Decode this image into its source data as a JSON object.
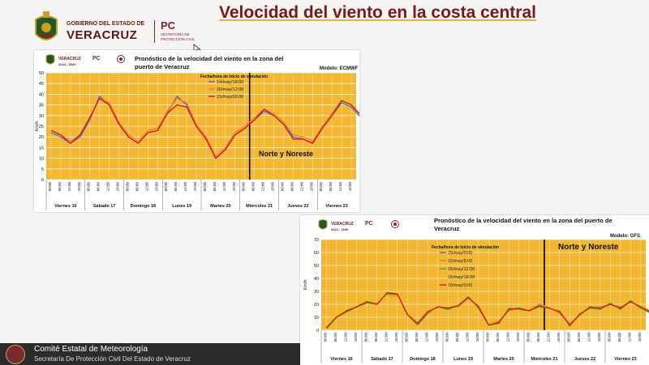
{
  "slide": {
    "title": "Velocidad del viento en la costa central",
    "gov_line1": "GOBIERNO DEL ESTADO DE",
    "gov_line2": "VERACRUZ",
    "pc_label": "PC",
    "pc_sub1": "SECRETARÍA DE",
    "pc_sub2": "PROTECCIÓN CIVIL",
    "footer_title": "Comité Estatal de Meteorología",
    "footer_subtitle": "Secretaría De Protección Civil Del Estado de Veracruz",
    "mini_gov": "VERACRUZ",
    "mini_years": "2024 - 2030"
  },
  "chart_data": [
    {
      "type": "line",
      "title": "Pronóstico de la velocidad  del viento en la zona del puerto de Veracruz",
      "model": "Modelo: ECMWF",
      "ylabel": "Km/h",
      "ylim": [
        0,
        50
      ],
      "yticks": [
        0,
        5,
        10,
        15,
        20,
        25,
        30,
        35,
        40,
        45,
        50
      ],
      "legend_title": "Fecha/hora de inicio de simulación",
      "legend_position": "top-center",
      "annotation": "Norte y Noreste",
      "grid": true,
      "hours": [
        "00:00",
        "06:00",
        "12:00",
        "18:00"
      ],
      "days": [
        "Viernes 16",
        "Sábado 17",
        "Domingo 18",
        "Lunes 19",
        "Martes 20",
        "Miércoles 21",
        "Jueves 22",
        "Viernes 23"
      ],
      "split_after_step": 21,
      "series": [
        {
          "name": "14/may/18:00",
          "color": "#4472c4",
          "values": [
            22,
            20,
            17,
            20,
            28,
            39,
            35,
            26,
            20,
            17,
            22,
            23,
            31,
            39,
            35,
            25,
            19,
            10,
            14,
            21,
            24,
            28,
            32,
            30,
            26,
            20,
            19,
            17,
            24,
            30,
            36,
            34,
            29,
            24,
            21,
            22,
            28,
            33,
            34,
            30,
            28,
            22,
            20,
            23,
            28,
            34,
            36,
            32,
            28,
            20,
            16,
            18,
            26,
            31,
            34,
            33,
            30,
            29,
            30,
            34,
            36,
            37,
            35,
            34
          ]
        },
        {
          "name": "15/may/12:00",
          "color": "#ed7d31",
          "values": [
            23,
            21,
            18,
            21,
            29,
            38,
            36,
            27,
            21,
            18,
            23,
            24,
            32,
            38,
            36,
            26,
            20,
            11,
            15,
            22,
            25,
            29,
            33,
            31,
            27,
            21,
            20,
            18,
            25,
            31,
            37,
            35,
            30,
            25,
            22,
            23,
            29,
            34,
            35,
            31,
            29,
            23,
            20,
            24,
            30,
            36,
            38,
            37,
            36,
            32,
            30,
            32,
            36,
            39,
            40,
            38,
            35,
            32,
            31,
            33,
            35,
            36,
            35,
            33
          ]
        },
        {
          "name": "15/may/00:00",
          "color": "#e01010",
          "values": [
            23,
            21,
            17,
            21,
            29,
            38,
            35,
            26,
            20,
            17,
            22,
            23,
            31,
            35,
            34,
            25,
            19,
            10,
            14,
            21,
            24,
            28,
            33,
            30,
            26,
            19,
            19,
            17,
            24,
            30,
            37,
            35,
            30,
            24,
            21,
            22,
            29,
            34,
            35,
            31,
            28,
            19,
            16,
            22,
            28,
            32,
            31,
            30,
            27,
            31,
            35,
            38,
            42,
            44,
            43,
            40,
            36,
            33,
            32,
            34,
            35,
            34,
            31,
            24
          ]
        }
      ]
    },
    {
      "type": "line",
      "title": "Pronóstico de la velocidad  del viento en la zona del puerto de Veracruz",
      "model": "Modelo: GFS",
      "ylabel": "Km/h",
      "ylim": [
        0,
        70
      ],
      "yticks": [
        0,
        10,
        20,
        30,
        40,
        50,
        60,
        70
      ],
      "legend_title": "Fecha/hora de inicio de simulación",
      "legend_position": "top-left",
      "annotation": "Norte y Noreste",
      "grid": true,
      "hours": [
        "00:00",
        "06:00",
        "12:00",
        "18:00"
      ],
      "days": [
        "Viernes 16",
        "Sábado 17",
        "Domingo 18",
        "Lunes 19",
        "Martes 20",
        "Miércoles 21",
        "Jueves 22",
        "Viernes 23"
      ],
      "split_after_step": 22,
      "series": [
        {
          "name": "15/may/0:00",
          "color": "#4472c4",
          "values": [
            2,
            10,
            15,
            18,
            22,
            20,
            28,
            27,
            12,
            5,
            14,
            18,
            17,
            19,
            25,
            18,
            4,
            6,
            16,
            17,
            15,
            19,
            17,
            14,
            4,
            12,
            18,
            17,
            20,
            17,
            22,
            18,
            14,
            8,
            17,
            20,
            19,
            17,
            20,
            18,
            14,
            6,
            10,
            15,
            5,
            7,
            20,
            28,
            22,
            12,
            15,
            28,
            38,
            40,
            35,
            32,
            34,
            30,
            36,
            38,
            40,
            38,
            35,
            30
          ]
        },
        {
          "name": "15/may/6:00",
          "color": "#ed7d31",
          "values": [
            2,
            11,
            15,
            19,
            22,
            21,
            27,
            27,
            13,
            6,
            15,
            17,
            18,
            18,
            24,
            19,
            5,
            7,
            15,
            17,
            16,
            20,
            18,
            13,
            5,
            12,
            18,
            18,
            20,
            18,
            22,
            18,
            14,
            7,
            16,
            20,
            19,
            18,
            21,
            17,
            13,
            5,
            9,
            14,
            6,
            6,
            22,
            35,
            45,
            48,
            50,
            46,
            44,
            47,
            48,
            45,
            42,
            35,
            32,
            33,
            30,
            28,
            26,
            22
          ]
        },
        {
          "name": "15/may/12:00",
          "color": "#30b030",
          "values": [
            1,
            10,
            14,
            18,
            21,
            20,
            28,
            28,
            12,
            4,
            13,
            18,
            16,
            19,
            26,
            17,
            4,
            5,
            17,
            16,
            15,
            18,
            17,
            15,
            3,
            13,
            17,
            16,
            21,
            16,
            23,
            17,
            13,
            9,
            18,
            20,
            18,
            16,
            20,
            19,
            15,
            5,
            8,
            16,
            4,
            5,
            18,
            32,
            36,
            40,
            42,
            45,
            50,
            44,
            40,
            36,
            32,
            28,
            24,
            22,
            20,
            18,
            20,
            24
          ]
        },
        {
          "name": "15/may/18:00",
          "color": "#f2c200",
          "values": [
            2,
            11,
            16,
            19,
            23,
            21,
            27,
            26,
            13,
            5,
            14,
            17,
            18,
            19,
            24,
            18,
            5,
            6,
            16,
            17,
            16,
            19,
            18,
            14,
            4,
            12,
            19,
            17,
            20,
            17,
            22,
            19,
            15,
            8,
            16,
            21,
            19,
            17,
            21,
            18,
            13,
            6,
            9,
            15,
            5,
            6,
            25,
            38,
            42,
            40,
            39,
            44,
            42,
            40,
            36,
            32,
            30,
            28,
            27,
            25,
            24,
            22,
            20,
            18
          ]
        },
        {
          "name": "16/may/0:00",
          "color": "#e01010",
          "values": [
            2,
            10,
            15,
            18,
            22,
            20,
            29,
            28,
            12,
            5,
            14,
            18,
            17,
            19,
            25,
            18,
            4,
            6,
            16,
            17,
            15,
            19,
            17,
            14,
            4,
            12,
            18,
            17,
            20,
            17,
            22,
            18,
            14,
            8,
            17,
            20,
            19,
            17,
            20,
            18,
            14,
            6,
            10,
            15,
            5,
            7,
            20,
            28,
            24,
            34,
            38,
            36,
            40,
            38,
            34,
            30,
            28,
            26,
            25,
            24,
            22,
            20,
            19,
            18
          ]
        }
      ]
    }
  ]
}
